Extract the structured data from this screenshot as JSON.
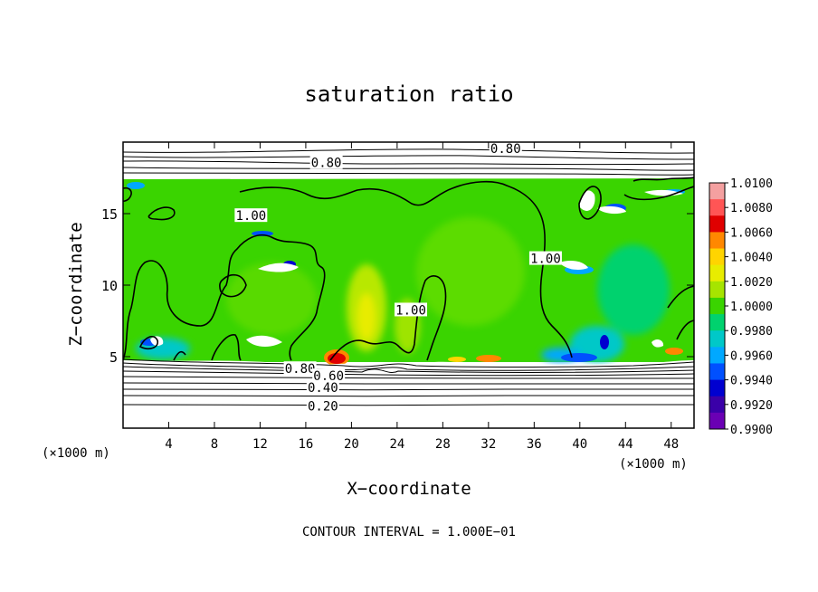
{
  "chart_data": {
    "type": "heatmap",
    "title": "saturation ratio",
    "xlabel": "X−coordinate",
    "ylabel": "Z−coordinate",
    "x_unit": "(×1000 m)",
    "y_unit": "(×1000 m)",
    "xlim": [
      0,
      50
    ],
    "ylim": [
      0,
      20
    ],
    "x_ticks": [
      4,
      8,
      12,
      16,
      20,
      24,
      28,
      32,
      36,
      40,
      44,
      48
    ],
    "y_ticks": [
      5,
      10,
      15
    ],
    "colorbar": {
      "labels": [
        "1.0100",
        "1.0080",
        "1.0060",
        "1.0040",
        "1.0020",
        "1.0000",
        "0.9980",
        "0.9960",
        "0.9940",
        "0.9920",
        "0.9900"
      ],
      "colors": [
        "#f4a0a0",
        "#ff5555",
        "#e00000",
        "#ff8800",
        "#ffd400",
        "#e8ec00",
        "#a6e400",
        "#3ad400",
        "#00d26e",
        "#00c8c8",
        "#00a8ff",
        "#0050ff",
        "#0000d0",
        "#3a00a8",
        "#6a00b4"
      ]
    },
    "contour_labels": [
      {
        "text": "0.80",
        "x": 33.5,
        "z": 19.5
      },
      {
        "text": "0.80",
        "x": 17.8,
        "z": 18.5
      },
      {
        "text": "1.00",
        "x": 11.2,
        "z": 14.8
      },
      {
        "text": "1.00",
        "x": 37.0,
        "z": 11.8
      },
      {
        "text": "1.00",
        "x": 25.2,
        "z": 8.2
      },
      {
        "text": "0.80",
        "x": 15.5,
        "z": 4.1
      },
      {
        "text": "0.60",
        "x": 18.0,
        "z": 3.6
      },
      {
        "text": "0.40",
        "x": 17.5,
        "z": 2.8
      },
      {
        "text": "0.20",
        "x": 17.5,
        "z": 1.5
      }
    ],
    "annotation": "CONTOUR INTERVAL = 1.000E−01"
  }
}
